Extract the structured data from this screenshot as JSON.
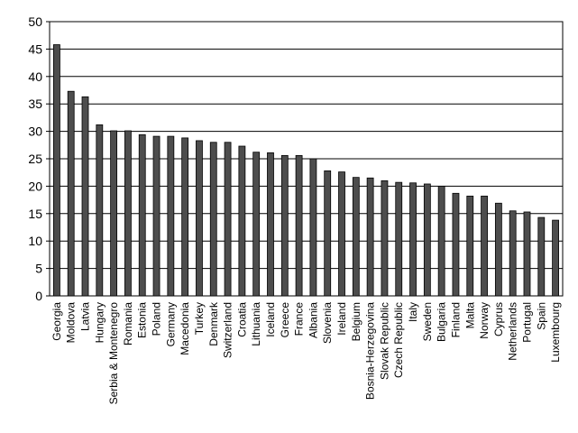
{
  "chart_data": {
    "type": "bar",
    "categories": [
      "Georgia",
      "Moldova",
      "Latvia",
      "Hungary",
      "Serbia & Montenegro",
      "Romania",
      "Estonia",
      "Poland",
      "Germany",
      "Macedonia",
      "Turkey",
      "Denmark",
      "Switzerland",
      "Croatia",
      "Lithuania",
      "Iceland",
      "Greece",
      "France",
      "Albania",
      "Slovenia",
      "Ireland",
      "Belgium",
      "Bosnia-Herzegovina",
      "Slovak Republic",
      "Czech Republic",
      "Italy",
      "Sweden",
      "Bulgaria",
      "Finland",
      "Malta",
      "Norway",
      "Cyprus",
      "Netherlands",
      "Portugal",
      "Spain",
      "Luxembourg"
    ],
    "values": [
      45.8,
      37.3,
      36.3,
      31.2,
      30.1,
      30.1,
      29.4,
      29.1,
      29.1,
      28.8,
      28.3,
      28.0,
      28.0,
      27.3,
      26.2,
      26.1,
      25.6,
      25.6,
      25.0,
      22.8,
      22.6,
      21.6,
      21.5,
      21.0,
      20.7,
      20.6,
      20.4,
      20.0,
      18.7,
      18.2,
      18.2,
      16.9,
      15.5,
      15.3,
      14.3,
      13.8
    ],
    "color": "#4d4d4d",
    "ylim": [
      0,
      50
    ],
    "yticks": [
      0,
      5,
      10,
      15,
      20,
      25,
      30,
      35,
      40,
      45,
      50
    ],
    "grid": true
  }
}
